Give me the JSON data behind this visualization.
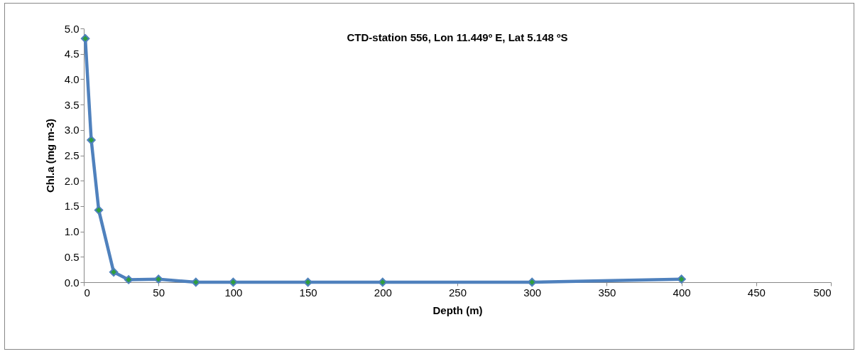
{
  "chart_data": {
    "type": "line",
    "title": "CTD-station 556, Lon 11.449º E, Lat 5.148 ºS",
    "xlabel": "Depth (m)",
    "ylabel": "Chl.a (mg m-3)",
    "x": [
      1,
      5,
      10,
      20,
      30,
      50,
      75,
      100,
      150,
      200,
      300,
      400
    ],
    "series": [
      {
        "color": "#4f81bd",
        "values": [
          4.8,
          2.8,
          1.42,
          0.2,
          0.05,
          0.06,
          0.0,
          0.0,
          0.0,
          0.0,
          0.0,
          0.06
        ]
      }
    ],
    "xlim": [
      0,
      500
    ],
    "xticks": [
      0,
      50,
      100,
      150,
      200,
      250,
      300,
      350,
      400,
      450,
      500
    ],
    "ylim": [
      0,
      5
    ],
    "yticks": [
      {
        "value": 0,
        "label": "0.0"
      },
      {
        "value": 0.5,
        "label": "0.5"
      },
      {
        "value": 1,
        "label": "1.0"
      },
      {
        "value": 1.5,
        "label": "1.5"
      },
      {
        "value": 2,
        "label": "2.0"
      },
      {
        "value": 2.5,
        "label": "2.5"
      },
      {
        "value": 3,
        "label": "3.0"
      },
      {
        "value": 3.5,
        "label": "3.5"
      },
      {
        "value": 4,
        "label": "4.0"
      },
      {
        "value": 4.5,
        "label": "4.5"
      },
      {
        "value": 5,
        "label": "5.0"
      }
    ],
    "marker": "diamond",
    "line_style": "solid",
    "grid": false
  }
}
